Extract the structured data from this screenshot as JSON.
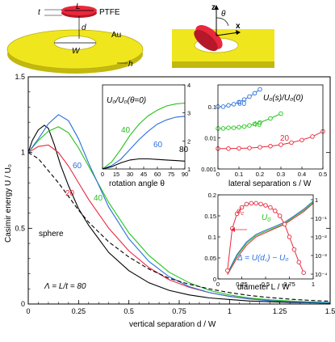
{
  "chart_data": [
    {
      "id": "main",
      "type": "line",
      "xlabel": "vertical separation d / W",
      "ylabel": "Casimir energy U / U₀",
      "xlim": [
        0,
        1.5
      ],
      "ylim": [
        0,
        1.5
      ],
      "xticks": [
        "0",
        "0.25",
        "0.5",
        "0.75",
        "1",
        "1.25",
        "1.5"
      ],
      "yticks": [
        "0",
        "0.5",
        "1",
        "1.5"
      ],
      "series": [
        {
          "name": "80",
          "color": "#000000",
          "dash": false,
          "x": [
            0,
            0.02,
            0.05,
            0.08,
            0.1,
            0.13,
            0.16,
            0.2,
            0.25,
            0.3,
            0.4,
            0.5,
            0.6,
            0.7,
            0.8,
            0.9,
            1.0,
            1.1,
            1.2,
            1.3,
            1.4,
            1.5
          ],
          "y": [
            1.0,
            1.08,
            1.15,
            1.18,
            1.16,
            1.05,
            0.92,
            0.78,
            0.63,
            0.52,
            0.34,
            0.22,
            0.14,
            0.09,
            0.06,
            0.04,
            0.03,
            0.02,
            0.015,
            0.01,
            0.008,
            0.006
          ]
        },
        {
          "name": "20",
          "color": "#e8283c",
          "dash": false,
          "x": [
            0,
            0.05,
            0.1,
            0.15,
            0.2,
            0.25,
            0.3,
            0.4,
            0.5,
            0.6,
            0.7,
            0.8,
            0.9,
            1.0,
            1.1,
            1.2,
            1.3,
            1.4,
            1.5
          ],
          "y": [
            1.0,
            1.04,
            1.05,
            1.0,
            0.91,
            0.8,
            0.69,
            0.5,
            0.35,
            0.24,
            0.16,
            0.11,
            0.075,
            0.05,
            0.035,
            0.024,
            0.017,
            0.012,
            0.009
          ]
        },
        {
          "name": "40",
          "color": "#22c31a",
          "dash": false,
          "x": [
            0,
            0.05,
            0.1,
            0.15,
            0.2,
            0.25,
            0.3,
            0.4,
            0.5,
            0.6,
            0.7,
            0.8,
            0.9,
            1.0,
            1.1,
            1.2,
            1.3,
            1.4,
            1.5
          ],
          "y": [
            1.0,
            1.08,
            1.14,
            1.17,
            1.13,
            1.03,
            0.91,
            0.67,
            0.47,
            0.32,
            0.21,
            0.14,
            0.09,
            0.06,
            0.04,
            0.028,
            0.02,
            0.014,
            0.01
          ]
        },
        {
          "name": "60",
          "color": "#2b6fdb",
          "dash": false,
          "x": [
            0,
            0.05,
            0.1,
            0.15,
            0.2,
            0.25,
            0.3,
            0.4,
            0.5,
            0.6,
            0.7,
            0.8,
            0.9,
            1.0,
            1.1,
            1.2,
            1.3,
            1.4,
            1.5
          ],
          "y": [
            1.0,
            1.09,
            1.19,
            1.25,
            1.21,
            1.09,
            0.93,
            0.64,
            0.43,
            0.28,
            0.18,
            0.115,
            0.075,
            0.05,
            0.033,
            0.022,
            0.015,
            0.01,
            0.007
          ]
        },
        {
          "name": "sphere",
          "color": "#000000",
          "dash": true,
          "x": [
            0,
            0.05,
            0.1,
            0.15,
            0.2,
            0.25,
            0.3,
            0.4,
            0.5,
            0.6,
            0.7,
            0.8,
            0.9,
            1.0,
            1.1,
            1.2,
            1.3,
            1.4,
            1.5
          ],
          "y": [
            1.0,
            0.96,
            0.88,
            0.8,
            0.71,
            0.62,
            0.54,
            0.41,
            0.31,
            0.23,
            0.17,
            0.13,
            0.1,
            0.075,
            0.056,
            0.042,
            0.032,
            0.024,
            0.018
          ]
        }
      ],
      "annotations": {
        "lambda": "Λ = L/t = 80",
        "sphere": "sphere",
        "c20": "20",
        "c40": "40",
        "c60": "60"
      }
    },
    {
      "id": "inset-rotation",
      "type": "line",
      "title": "U₀/U₀(θ=0)",
      "xlabel": "rotation angle θ",
      "xlim": [
        0,
        90
      ],
      "ylim": [
        1,
        4
      ],
      "xticks": [
        "0",
        "15",
        "30",
        "45",
        "60",
        "75",
        "90"
      ],
      "yticks": [
        "1",
        "2",
        "3",
        "4"
      ],
      "series": [
        {
          "name": "40",
          "color": "#22c31a",
          "x": [
            0,
            10,
            20,
            30,
            40,
            50,
            60,
            70,
            80,
            90
          ],
          "y": [
            1.0,
            1.25,
            1.7,
            2.2,
            2.6,
            2.9,
            3.1,
            3.25,
            3.32,
            3.35
          ]
        },
        {
          "name": "60",
          "color": "#2b6fdb",
          "x": [
            0,
            10,
            20,
            30,
            40,
            50,
            60,
            70,
            80,
            90
          ],
          "y": [
            1.0,
            1.12,
            1.35,
            1.7,
            2.05,
            2.35,
            2.6,
            2.75,
            2.85,
            2.88
          ]
        },
        {
          "name": "80",
          "color": "#000000",
          "x": [
            0,
            10,
            20,
            30,
            40,
            50,
            60,
            70,
            80,
            90
          ],
          "y": [
            1.0,
            1.08,
            1.22,
            1.32,
            1.36,
            1.36,
            1.34,
            1.32,
            1.3,
            1.28
          ]
        }
      ]
    },
    {
      "id": "inset-lateral",
      "type": "scatter",
      "title": "U₀(s)/U₀(0)",
      "xlabel": "lateral separation s / W",
      "xlim": [
        0,
        0.5
      ],
      "ylim": [
        0.001,
        0.5
      ],
      "yscale": "log",
      "xticks": [
        "0",
        "0.1",
        "0.2",
        "0.3",
        "0.4",
        "0.5"
      ],
      "yticks": [
        "0.001",
        "0.01",
        "0.1"
      ],
      "series": [
        {
          "name": "60",
          "color": "#2b6fdb",
          "x": [
            0,
            0.025,
            0.05,
            0.075,
            0.1,
            0.125,
            0.15,
            0.175,
            0.2
          ],
          "y": [
            0.1,
            0.1,
            0.11,
            0.12,
            0.14,
            0.17,
            0.21,
            0.27,
            0.36
          ]
        },
        {
          "name": "40",
          "color": "#22c31a",
          "x": [
            0,
            0.025,
            0.05,
            0.075,
            0.1,
            0.125,
            0.15,
            0.175,
            0.2,
            0.25,
            0.3
          ],
          "y": [
            0.02,
            0.02,
            0.021,
            0.021,
            0.022,
            0.023,
            0.025,
            0.028,
            0.031,
            0.042,
            0.06
          ]
        },
        {
          "name": "20",
          "color": "#e8283c",
          "x": [
            0,
            0.05,
            0.1,
            0.15,
            0.2,
            0.25,
            0.3,
            0.35,
            0.4,
            0.45,
            0.5
          ],
          "y": [
            0.0045,
            0.0045,
            0.0046,
            0.0047,
            0.005,
            0.0054,
            0.006,
            0.007,
            0.0085,
            0.011,
            0.016
          ]
        }
      ]
    },
    {
      "id": "inset-diameter",
      "type": "line",
      "xlabel": "diameter L / W",
      "xlim": [
        0,
        1
      ],
      "ylim": [
        0,
        0.2
      ],
      "yticks": [
        "0",
        "0.05",
        "0.1",
        "0.15",
        "0.2"
      ],
      "xticks": [
        "0",
        "0.25",
        "0.5",
        "0.75",
        "1"
      ],
      "y2scale": "log",
      "y2ticks": [
        "1",
        "10⁻¹",
        "10⁻²",
        "10⁻³",
        "10⁻⁴"
      ],
      "dc_points": {
        "name": "d_c",
        "color": "#e8283c",
        "x": [
          0.1,
          0.15,
          0.2,
          0.25,
          0.3,
          0.35,
          0.4,
          0.45,
          0.5,
          0.55,
          0.6,
          0.65,
          0.7,
          0.75,
          0.8,
          0.85,
          0.9
        ],
        "y": [
          0.02,
          0.12,
          0.155,
          0.17,
          0.178,
          0.18,
          0.18,
          0.178,
          0.175,
          0.17,
          0.162,
          0.15,
          0.13,
          0.1,
          0.07,
          0.04,
          0.015
        ]
      },
      "u0_curves": [
        {
          "name": "U₀ (Λ=20)",
          "color": "#e8283c",
          "x": [
            0.1,
            0.2,
            0.3,
            0.4,
            0.5,
            0.6,
            0.7,
            0.8,
            0.9,
            1.0
          ],
          "y": [
            0.01,
            0.05,
            0.08,
            0.1,
            0.11,
            0.12,
            0.13,
            0.145,
            0.16,
            0.18
          ]
        },
        {
          "name": "U₀ (Λ=40)",
          "color": "#22c31a",
          "x": [
            0.1,
            0.2,
            0.3,
            0.4,
            0.5,
            0.6,
            0.7,
            0.8,
            0.9,
            1.0
          ],
          "y": [
            0.012,
            0.055,
            0.085,
            0.103,
            0.113,
            0.122,
            0.132,
            0.148,
            0.163,
            0.182
          ]
        },
        {
          "name": "U₀ (Λ=60)",
          "color": "#2b6fdb",
          "x": [
            0.1,
            0.2,
            0.3,
            0.4,
            0.5,
            0.6,
            0.7,
            0.8,
            0.9,
            1.0
          ],
          "y": [
            0.014,
            0.058,
            0.088,
            0.106,
            0.116,
            0.125,
            0.135,
            0.15,
            0.166,
            0.185
          ]
        }
      ],
      "labels": {
        "dc": "d",
        "dc_sub": "c",
        "u0": "U",
        "u0_sub": "0",
        "delta": "Δ = U(d꜀) − U₀"
      }
    }
  ],
  "schematic": {
    "t": "t",
    "L": "L",
    "d": "d",
    "W": "W",
    "h": "h",
    "PTFE": "PTFE",
    "Au": "Au",
    "z": "z",
    "theta": "θ",
    "x": "x"
  },
  "colors": {
    "gold": "#f0e61e",
    "gold_dark": "#c2b80e",
    "ptfe_red": "#e8283c",
    "blue": "#2b6fdb",
    "green": "#22c31a"
  }
}
